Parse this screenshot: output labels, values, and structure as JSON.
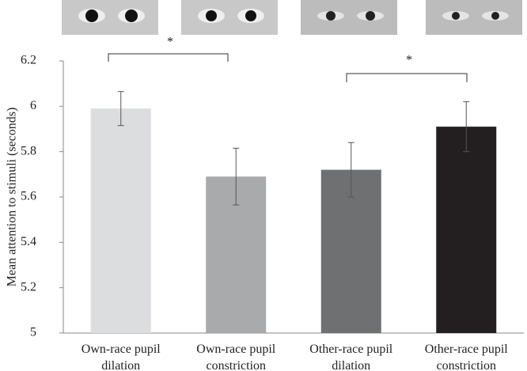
{
  "chart_data": {
    "type": "bar",
    "y_label": "Mean attention to stimuli (seconds)",
    "categories": [
      "Own-race pupil dilation",
      "Own-race pupil constriction",
      "Other-race pupil dilation",
      "Other-race pupil constriction"
    ],
    "values": [
      5.99,
      5.69,
      5.72,
      5.91
    ],
    "errors": [
      0.075,
      0.125,
      0.12,
      0.11
    ],
    "colors": [
      "#dcdddf",
      "#a9aaac",
      "#6f7072",
      "#231f20"
    ],
    "ylim": [
      5,
      6.2
    ],
    "yticks": [
      5,
      5.2,
      5.4,
      5.6,
      5.8,
      6,
      6.2
    ],
    "annotations": [
      "*",
      "*"
    ]
  }
}
